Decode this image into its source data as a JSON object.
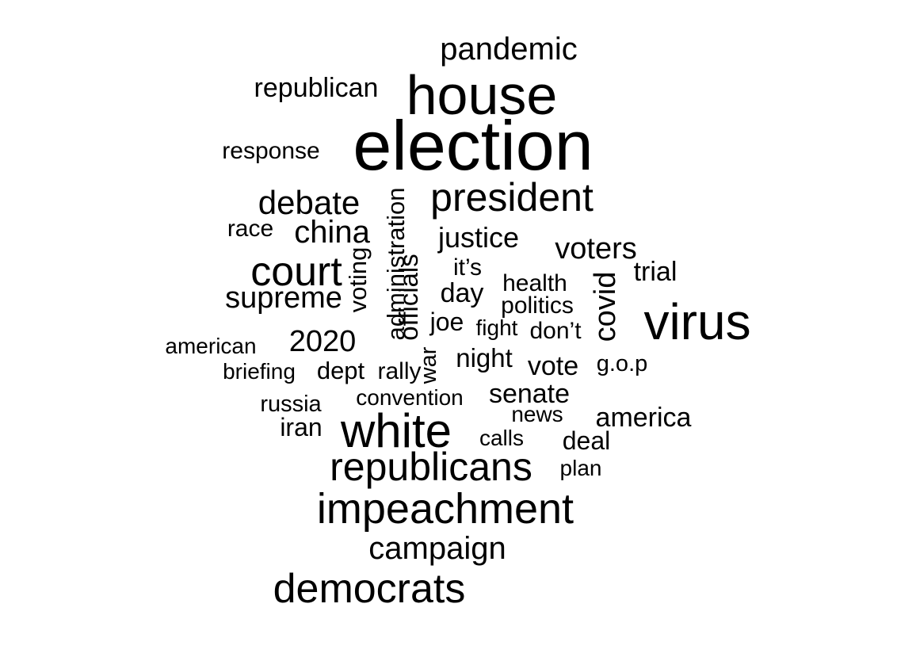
{
  "word_cloud": {
    "text_color": "#000000",
    "background": "#ffffff",
    "words": [
      {
        "id": "election",
        "text": "election"
      },
      {
        "id": "house",
        "text": "house"
      },
      {
        "id": "virus",
        "text": "virus"
      },
      {
        "id": "white",
        "text": "white"
      },
      {
        "id": "impeachment",
        "text": "impeachment"
      },
      {
        "id": "democrats",
        "text": "democrats"
      },
      {
        "id": "president",
        "text": "president"
      },
      {
        "id": "court",
        "text": "court"
      },
      {
        "id": "republicans",
        "text": "republicans"
      },
      {
        "id": "pandemic",
        "text": "pandemic"
      },
      {
        "id": "debate",
        "text": "debate"
      },
      {
        "id": "campaign",
        "text": "campaign"
      },
      {
        "id": "republican",
        "text": "republican"
      },
      {
        "id": "supreme",
        "text": "supreme"
      },
      {
        "id": "china",
        "text": "china"
      },
      {
        "id": "justice",
        "text": "justice"
      },
      {
        "id": "voters",
        "text": "voters"
      },
      {
        "id": "2020",
        "text": "2020"
      },
      {
        "id": "america",
        "text": "america"
      },
      {
        "id": "senate",
        "text": "senate"
      },
      {
        "id": "response",
        "text": "response"
      },
      {
        "id": "covid",
        "text": "covid"
      },
      {
        "id": "administration",
        "text": "administration"
      },
      {
        "id": "officials",
        "text": "officials"
      },
      {
        "id": "vote",
        "text": "vote"
      },
      {
        "id": "trial",
        "text": "trial"
      },
      {
        "id": "night",
        "text": "night"
      },
      {
        "id": "day",
        "text": "day"
      },
      {
        "id": "race",
        "text": "race"
      },
      {
        "id": "its",
        "text": "it’s"
      },
      {
        "id": "health",
        "text": "health"
      },
      {
        "id": "politics",
        "text": "politics"
      },
      {
        "id": "voting",
        "text": "voting"
      },
      {
        "id": "dept",
        "text": "dept"
      },
      {
        "id": "deal",
        "text": "deal"
      },
      {
        "id": "american",
        "text": "american"
      },
      {
        "id": "joe",
        "text": "joe"
      },
      {
        "id": "fight",
        "text": "fight"
      },
      {
        "id": "dont",
        "text": "don’t"
      },
      {
        "id": "gop",
        "text": "g.o.p"
      },
      {
        "id": "briefing",
        "text": "briefing"
      },
      {
        "id": "rally",
        "text": "rally"
      },
      {
        "id": "war",
        "text": "war"
      },
      {
        "id": "russia",
        "text": "russia"
      },
      {
        "id": "convention",
        "text": "convention"
      },
      {
        "id": "news",
        "text": "news"
      },
      {
        "id": "iran",
        "text": "iran"
      },
      {
        "id": "calls",
        "text": "calls"
      },
      {
        "id": "plan",
        "text": "plan"
      }
    ]
  }
}
